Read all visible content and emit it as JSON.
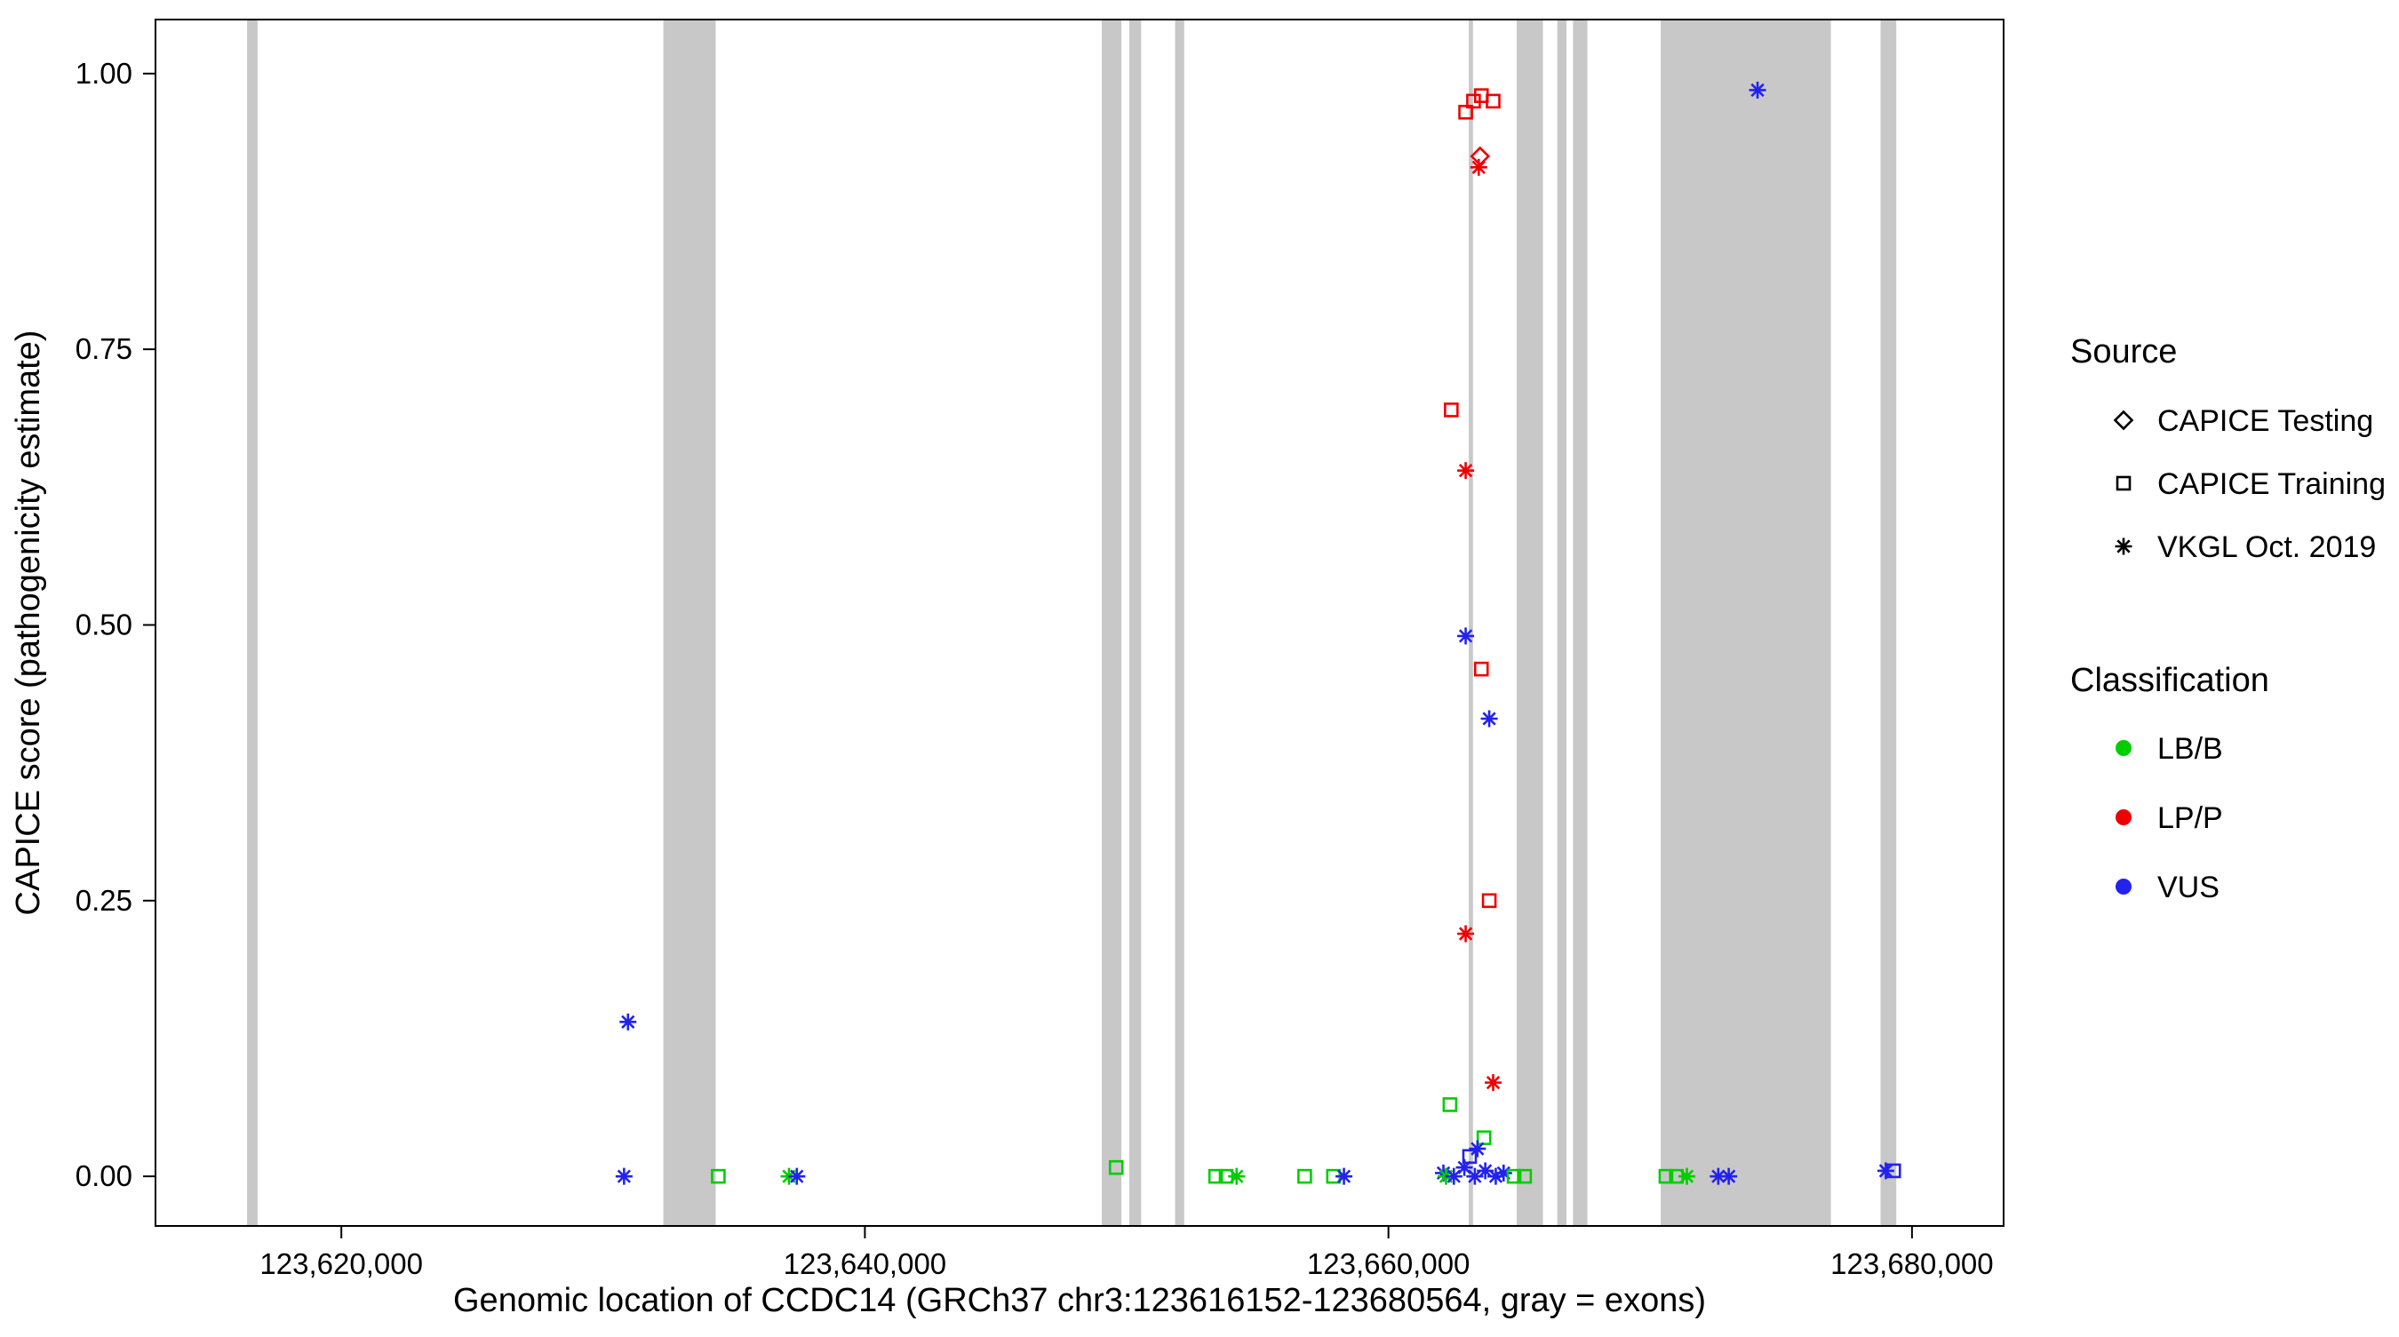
{
  "chart_data": {
    "type": "scatter",
    "title": "",
    "xlabel": "Genomic location of CCDC14 (GRCh37 chr3:123616152-123680564, gray = exons)",
    "ylabel": "CAPICE score (pathogenicity estimate)",
    "xlim": [
      123612900,
      123683500
    ],
    "ylim": [
      -0.045,
      1.049
    ],
    "x_ticks": [
      123620000,
      123640000,
      123660000,
      123680000
    ],
    "x_tick_labels": [
      "123,620,000",
      "123,640,000",
      "123,660,000",
      "123,680,000"
    ],
    "y_ticks": [
      0,
      0.25,
      0.5,
      0.75,
      1
    ],
    "y_tick_labels": [
      "0.00",
      "0.25",
      "0.50",
      "0.75",
      "1.00"
    ],
    "grid": false,
    "exon_color": "#C8C8C8",
    "exons": [
      [
        123616400,
        123616800
      ],
      [
        123632300,
        123634300
      ],
      [
        123649050,
        123649800
      ],
      [
        123650100,
        123650550
      ],
      [
        123651850,
        123652200
      ],
      [
        123663070,
        123663230
      ],
      [
        123664900,
        123665900
      ],
      [
        123666450,
        123666800
      ],
      [
        123667050,
        123667600
      ],
      [
        123670400,
        123676900
      ],
      [
        123678800,
        123679400
      ]
    ],
    "class_colors": {
      "LB/B": "#00CD00",
      "LP/P": "#EE0000",
      "VUS": "#2222EE"
    },
    "source_shapes": {
      "CAPICE Testing": "diamond",
      "CAPICE Training": "square",
      "VKGL Oct. 2019": "asterisk"
    },
    "legend_source": {
      "title": "Source",
      "items": [
        {
          "label": "CAPICE Testing",
          "shape": "diamond"
        },
        {
          "label": "CAPICE Training",
          "shape": "square"
        },
        {
          "label": "VKGL Oct. 2019",
          "shape": "asterisk"
        }
      ]
    },
    "legend_classification": {
      "title": "Classification",
      "items": [
        {
          "label": "LB/B",
          "color": "#00CD00"
        },
        {
          "label": "LP/P",
          "color": "#EE0000"
        },
        {
          "label": "VUS",
          "color": "#2222EE"
        }
      ]
    },
    "points": [
      {
        "x": 123630800,
        "y": 0.0,
        "source": "VKGL Oct. 2019",
        "cls": "VUS"
      },
      {
        "x": 123630950,
        "y": 0.14,
        "source": "VKGL Oct. 2019",
        "cls": "VUS"
      },
      {
        "x": 123634400,
        "y": 0.0,
        "source": "CAPICE Training",
        "cls": "LB/B"
      },
      {
        "x": 123637100,
        "y": 0.0,
        "source": "VKGL Oct. 2019",
        "cls": "LB/B"
      },
      {
        "x": 123637400,
        "y": 0.0,
        "source": "VKGL Oct. 2019",
        "cls": "VUS"
      },
      {
        "x": 123649600,
        "y": 0.008,
        "source": "CAPICE Training",
        "cls": "LB/B"
      },
      {
        "x": 123653400,
        "y": 0.0,
        "source": "CAPICE Training",
        "cls": "LB/B"
      },
      {
        "x": 123653800,
        "y": 0.0,
        "source": "CAPICE Training",
        "cls": "LB/B"
      },
      {
        "x": 123654200,
        "y": 0.0,
        "source": "VKGL Oct. 2019",
        "cls": "LB/B"
      },
      {
        "x": 123656800,
        "y": 0.0,
        "source": "CAPICE Training",
        "cls": "LB/B"
      },
      {
        "x": 123657900,
        "y": 0.0,
        "source": "CAPICE Training",
        "cls": "LB/B"
      },
      {
        "x": 123658300,
        "y": 0.0,
        "source": "VKGL Oct. 2019",
        "cls": "VUS"
      },
      {
        "x": 123662350,
        "y": 0.065,
        "source": "CAPICE Training",
        "cls": "LB/B"
      },
      {
        "x": 123662400,
        "y": 0.695,
        "source": "CAPICE Training",
        "cls": "LP/P"
      },
      {
        "x": 123662950,
        "y": 0.965,
        "source": "CAPICE Training",
        "cls": "LP/P"
      },
      {
        "x": 123663250,
        "y": 0.975,
        "source": "CAPICE Training",
        "cls": "LP/P"
      },
      {
        "x": 123663550,
        "y": 0.98,
        "source": "CAPICE Training",
        "cls": "LP/P"
      },
      {
        "x": 123664000,
        "y": 0.975,
        "source": "CAPICE Training",
        "cls": "LP/P"
      },
      {
        "x": 123663500,
        "y": 0.925,
        "source": "CAPICE Testing",
        "cls": "LP/P"
      },
      {
        "x": 123663450,
        "y": 0.915,
        "source": "VKGL Oct. 2019",
        "cls": "LP/P"
      },
      {
        "x": 123662950,
        "y": 0.64,
        "source": "VKGL Oct. 2019",
        "cls": "LP/P"
      },
      {
        "x": 123662950,
        "y": 0.49,
        "source": "VKGL Oct. 2019",
        "cls": "VUS"
      },
      {
        "x": 123663550,
        "y": 0.46,
        "source": "CAPICE Training",
        "cls": "LP/P"
      },
      {
        "x": 123663850,
        "y": 0.415,
        "source": "VKGL Oct. 2019",
        "cls": "VUS"
      },
      {
        "x": 123663850,
        "y": 0.25,
        "source": "CAPICE Training",
        "cls": "LP/P"
      },
      {
        "x": 123662950,
        "y": 0.22,
        "source": "VKGL Oct. 2019",
        "cls": "LP/P"
      },
      {
        "x": 123664000,
        "y": 0.085,
        "source": "VKGL Oct. 2019",
        "cls": "LP/P"
      },
      {
        "x": 123663650,
        "y": 0.035,
        "source": "CAPICE Training",
        "cls": "LB/B"
      },
      {
        "x": 123663400,
        "y": 0.025,
        "source": "VKGL Oct. 2019",
        "cls": "VUS"
      },
      {
        "x": 123662100,
        "y": 0.003,
        "source": "VKGL Oct. 2019",
        "cls": "VUS"
      },
      {
        "x": 123662200,
        "y": 0.0,
        "source": "VKGL Oct. 2019",
        "cls": "LB/B"
      },
      {
        "x": 123662500,
        "y": 0.0,
        "source": "VKGL Oct. 2019",
        "cls": "VUS"
      },
      {
        "x": 123662900,
        "y": 0.008,
        "source": "VKGL Oct. 2019",
        "cls": "VUS"
      },
      {
        "x": 123663100,
        "y": 0.018,
        "source": "CAPICE Training",
        "cls": "VUS"
      },
      {
        "x": 123663300,
        "y": 0.0,
        "source": "VKGL Oct. 2019",
        "cls": "VUS"
      },
      {
        "x": 123663700,
        "y": 0.005,
        "source": "VKGL Oct. 2019",
        "cls": "VUS"
      },
      {
        "x": 123664100,
        "y": 0.0,
        "source": "VKGL Oct. 2019",
        "cls": "VUS"
      },
      {
        "x": 123664400,
        "y": 0.003,
        "source": "VKGL Oct. 2019",
        "cls": "VUS"
      },
      {
        "x": 123664800,
        "y": 0.0,
        "source": "CAPICE Training",
        "cls": "LB/B"
      },
      {
        "x": 123665200,
        "y": 0.0,
        "source": "CAPICE Training",
        "cls": "LB/B"
      },
      {
        "x": 123670600,
        "y": 0.0,
        "source": "CAPICE Training",
        "cls": "LB/B"
      },
      {
        "x": 123671000,
        "y": 0.0,
        "source": "CAPICE Training",
        "cls": "LB/B"
      },
      {
        "x": 123671400,
        "y": 0.0,
        "source": "VKGL Oct. 2019",
        "cls": "LB/B"
      },
      {
        "x": 123672600,
        "y": 0.0,
        "source": "VKGL Oct. 2019",
        "cls": "VUS"
      },
      {
        "x": 123673000,
        "y": 0.0,
        "source": "VKGL Oct. 2019",
        "cls": "VUS"
      },
      {
        "x": 123674100,
        "y": 0.985,
        "source": "VKGL Oct. 2019",
        "cls": "VUS"
      },
      {
        "x": 123679000,
        "y": 0.005,
        "source": "VKGL Oct. 2019",
        "cls": "VUS"
      },
      {
        "x": 123679300,
        "y": 0.005,
        "source": "CAPICE Training",
        "cls": "VUS"
      }
    ]
  }
}
